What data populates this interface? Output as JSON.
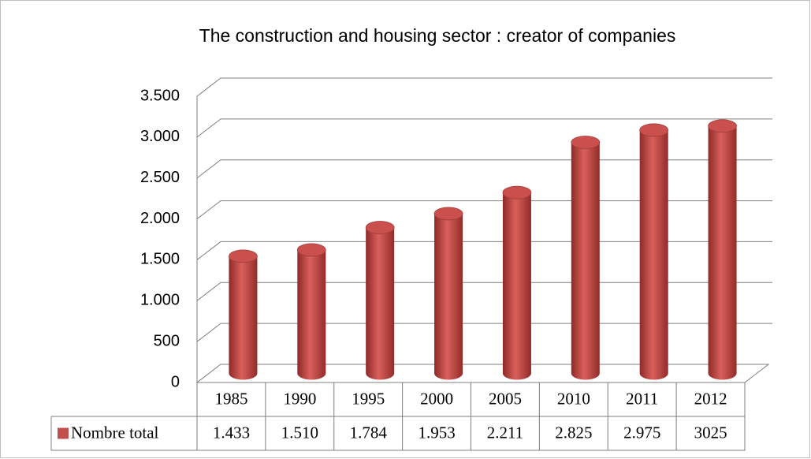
{
  "chart_data": {
    "type": "bar3d",
    "title": "The construction and housing sector : creator of companies",
    "categories": [
      "1985",
      "1990",
      "1995",
      "2000",
      "2005",
      "2010",
      "2011",
      "2012"
    ],
    "series": [
      {
        "name": "Nombre total",
        "color": "#c0504d",
        "values": [
          1433,
          1510,
          1784,
          1953,
          2211,
          2825,
          2975,
          3025
        ],
        "value_labels": [
          "1.433",
          "1.510",
          "1.784",
          "1.953",
          "2.211",
          "2.825",
          "2.975",
          "3025"
        ]
      }
    ],
    "ylim": [
      0,
      3500
    ],
    "yticks": [
      0,
      500,
      {
        "value": 1000,
        "label": "1.000"
      },
      {
        "value": 1500,
        "label": "1.500"
      },
      {
        "value": 2000,
        "label": "2.000"
      },
      {
        "value": 2500,
        "label": "2.500"
      },
      {
        "value": 3000,
        "label": "3.000"
      },
      {
        "value": 3500,
        "label": "3.500"
      }
    ],
    "grid": true
  }
}
